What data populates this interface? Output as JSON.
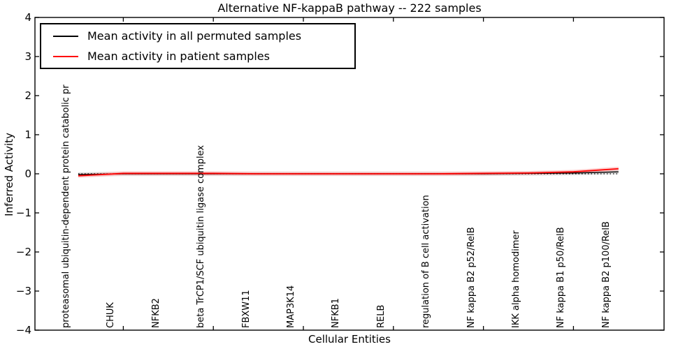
{
  "title": "Alternative NF-kappaB pathway -- 222 samples",
  "axes": {
    "ylabel": "Inferred Activity",
    "xlabel": "Cellular Entities",
    "ylim": [
      -4,
      4
    ],
    "yticks": [
      4,
      3,
      2,
      1,
      0,
      -1,
      -2,
      -3,
      -4
    ],
    "ytick_labels": [
      "4",
      "3",
      "2",
      "1",
      "0",
      "−1",
      "−2",
      "−3",
      "−4"
    ]
  },
  "legend": {
    "position": "upper left",
    "entries": [
      {
        "label": "Mean activity in all permuted samples",
        "color": "#000000"
      },
      {
        "label": "Mean activity in patient samples",
        "color": "#ff0000"
      }
    ]
  },
  "chart_data": {
    "type": "line",
    "title": "Alternative NF-kappaB pathway -- 222 samples",
    "xlabel": "Cellular Entities",
    "ylabel": "Inferred Activity",
    "ylim": [
      -4,
      4
    ],
    "grid": false,
    "zero_line": "dotted",
    "legend_position": "upper left",
    "categories": [
      "proteasomal ubiquitin-dependent protein catabolic pr",
      "CHUK",
      "NFKB2",
      "beta TrCP1/SCF ubiquitin ligase complex",
      "FBXW11",
      "MAP3K14",
      "NFKB1",
      "RELB",
      "regulation of B cell activation",
      "NF kappa B2 p52/RelB",
      "IKK alpha homodimer",
      "NF kappa B1 p50/RelB",
      "NF kappa B2 p100/RelB"
    ],
    "series": [
      {
        "name": "Mean activity in all permuted samples",
        "color": "#000000",
        "band_color": "#c8c8c8",
        "band_halfwidth": 0.055,
        "values": [
          -0.02,
          0.0,
          0.0,
          0.0,
          0.0,
          0.0,
          0.0,
          0.0,
          0.0,
          0.0,
          0.01,
          0.02,
          0.05
        ]
      },
      {
        "name": "Mean activity in patient samples",
        "color": "#ff0000",
        "band_color": "#ffb4b4",
        "band_halfwidth": 0.05,
        "values": [
          -0.05,
          0.01,
          0.01,
          0.01,
          0.0,
          0.0,
          0.0,
          0.0,
          0.0,
          0.01,
          0.02,
          0.05,
          0.13
        ]
      }
    ],
    "xtick_indices": [
      1,
      3,
      5,
      7,
      9,
      11
    ]
  }
}
